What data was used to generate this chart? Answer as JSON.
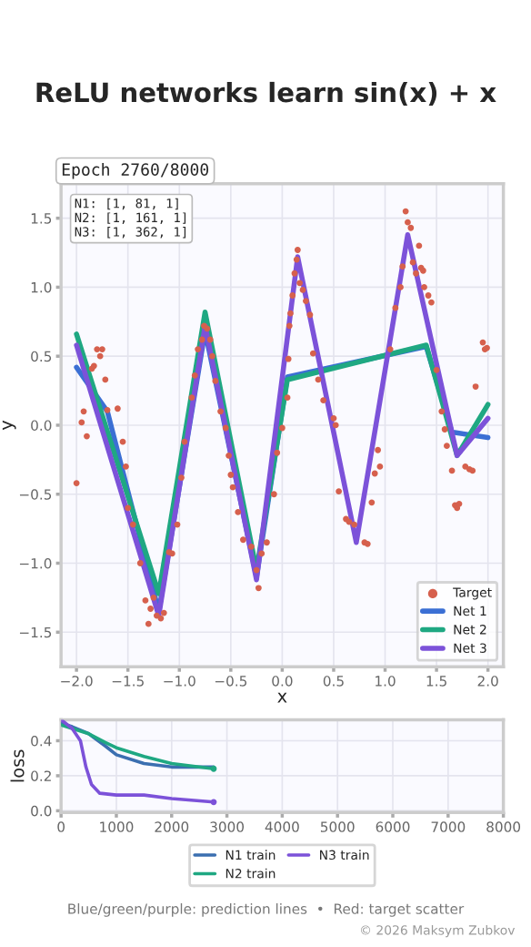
{
  "chart_data": [
    {
      "type": "line",
      "title": "ReLU networks learn sin(x) + x",
      "xlabel": "x",
      "ylabel": "y",
      "annotations": [
        "Epoch 2760/8000",
        "N1: [1, 81, 1]\nN2: [1, 161, 1]\nN3: [1, 362, 1]"
      ],
      "xlim": [
        -2.15,
        2.15
      ],
      "ylim": [
        -1.75,
        1.75
      ],
      "xticks": [
        {
          "value": -2.0,
          "label": "−2.0"
        },
        {
          "value": -1.5,
          "label": "−1.5"
        },
        {
          "value": -1.0,
          "label": "−1.0"
        },
        {
          "value": -0.5,
          "label": "−0.5"
        },
        {
          "value": 0.0,
          "label": "0.0"
        },
        {
          "value": 0.5,
          "label": "0.5"
        },
        {
          "value": 1.0,
          "label": "1.0"
        },
        {
          "value": 1.5,
          "label": "1.5"
        },
        {
          "value": 2.0,
          "label": "2.0"
        }
      ],
      "yticks": [
        {
          "value": -1.5,
          "label": "−1.5"
        },
        {
          "value": -1.0,
          "label": "−1.0"
        },
        {
          "value": -0.5,
          "label": "−0.5"
        },
        {
          "value": 0.0,
          "label": "0.0"
        },
        {
          "value": 0.5,
          "label": "0.5"
        },
        {
          "value": 1.0,
          "label": "1.0"
        },
        {
          "value": 1.5,
          "label": "1.5"
        }
      ],
      "grid": true,
      "legend": "bottom right",
      "series": [
        {
          "type": "scatter",
          "name": "Target",
          "color": "#d6604d",
          "x": [
            -2.0,
            -1.95,
            -1.93,
            -1.9,
            -1.85,
            -1.83,
            -1.8,
            -1.77,
            -1.75,
            -1.72,
            -1.7,
            -1.6,
            -1.55,
            -1.52,
            -1.5,
            -1.45,
            -1.38,
            -1.33,
            -1.3,
            -1.28,
            -1.25,
            -1.22,
            -1.18,
            -1.15,
            -1.1,
            -1.07,
            -1.02,
            -0.98,
            -0.95,
            -0.88,
            -0.85,
            -0.82,
            -0.78,
            -0.76,
            -0.73,
            -0.7,
            -0.68,
            -0.65,
            -0.6,
            -0.55,
            -0.52,
            -0.5,
            -0.48,
            -0.43,
            -0.38,
            -0.3,
            -0.25,
            -0.23,
            -0.2,
            -0.15,
            -0.08,
            -0.05,
            0.0,
            0.05,
            0.06,
            0.07,
            0.08,
            0.1,
            0.12,
            0.14,
            0.15,
            0.17,
            0.2,
            0.23,
            0.27,
            0.3,
            0.35,
            0.4,
            0.5,
            0.52,
            0.55,
            0.62,
            0.65,
            0.7,
            0.8,
            0.83,
            0.87,
            0.9,
            0.93,
            0.95,
            1.05,
            1.1,
            1.15,
            1.17,
            1.2,
            1.22,
            1.25,
            1.27,
            1.3,
            1.33,
            1.35,
            1.37,
            1.38,
            1.42,
            1.45,
            1.5,
            1.55,
            1.58,
            1.6,
            1.65,
            1.68,
            1.7,
            1.72,
            1.78,
            1.82,
            1.85,
            1.88,
            1.95,
            1.97,
            1.99
          ],
          "values": [
            -0.42,
            0.02,
            0.1,
            -0.08,
            0.41,
            0.43,
            0.55,
            0.5,
            0.55,
            0.33,
            0.11,
            0.12,
            -0.12,
            -0.3,
            -0.6,
            -0.72,
            -1.0,
            -1.27,
            -1.44,
            -1.33,
            -1.25,
            -1.38,
            -1.4,
            -1.36,
            -0.92,
            -0.93,
            -0.72,
            -0.38,
            -0.12,
            0.2,
            0.36,
            0.55,
            0.62,
            0.72,
            0.7,
            0.62,
            0.5,
            0.32,
            0.1,
            -0.02,
            -0.22,
            -0.36,
            -0.45,
            -0.63,
            -0.83,
            -0.88,
            -1.05,
            -1.18,
            -0.93,
            -0.85,
            -0.5,
            -0.2,
            -0.02,
            0.2,
            0.48,
            0.72,
            0.81,
            0.94,
            1.1,
            1.2,
            1.27,
            1.03,
            0.98,
            0.9,
            0.8,
            0.52,
            0.33,
            0.18,
            0.05,
            0.0,
            -0.48,
            -0.68,
            -0.7,
            -0.72,
            -0.85,
            -0.86,
            -0.56,
            -0.35,
            -0.18,
            -0.3,
            0.55,
            0.85,
            1.0,
            1.15,
            1.55,
            1.47,
            1.43,
            1.18,
            1.1,
            1.3,
            1.14,
            1.12,
            1.0,
            0.94,
            0.89,
            0.4,
            0.1,
            -0.03,
            -0.15,
            -0.33,
            -0.58,
            -0.6,
            -0.57,
            -0.3,
            -0.32,
            -0.33,
            0.28,
            0.6,
            0.55,
            0.56
          ]
        },
        {
          "name": "Net 1",
          "color": "#3b6fd4",
          "x": [
            -2.0,
            -1.7,
            -1.2,
            -0.75,
            -0.25,
            0.05,
            1.4,
            1.65,
            2.0
          ],
          "values": [
            0.42,
            0.1,
            -1.35,
            0.68,
            -1.1,
            0.35,
            0.57,
            -0.05,
            -0.09
          ]
        },
        {
          "name": "Net 2",
          "color": "#1fa882",
          "x": [
            -2.0,
            -1.2,
            -0.75,
            -0.25,
            0.05,
            1.4,
            1.7,
            2.0
          ],
          "values": [
            0.66,
            -1.22,
            0.82,
            -1.05,
            0.33,
            0.58,
            -0.22,
            0.15
          ]
        },
        {
          "name": "Net 3",
          "color": "#7c52d9",
          "x": [
            -2.0,
            -1.2,
            -0.75,
            -0.25,
            0.15,
            0.72,
            1.22,
            1.7,
            2.0
          ],
          "values": [
            0.58,
            -1.38,
            0.72,
            -1.12,
            1.22,
            -0.85,
            1.38,
            -0.22,
            0.05
          ]
        }
      ]
    },
    {
      "type": "line",
      "ylabel": "loss",
      "xlim": [
        0,
        8000
      ],
      "ylim": [
        -0.01,
        0.52
      ],
      "xticks": [
        0,
        1000,
        2000,
        3000,
        4000,
        5000,
        6000,
        7000,
        8000
      ],
      "yticks": [
        {
          "value": 0.0,
          "label": "0.0"
        },
        {
          "value": 0.2,
          "label": "0.2"
        },
        {
          "value": 0.4,
          "label": "0.4"
        }
      ],
      "grid": true,
      "legend": "bottom",
      "annotations": [
        "Blue/green/purple: prediction lines  •  Red: target scatter",
        "© 2026 Maksym Zubkov"
      ],
      "series": [
        {
          "name": "N1 train",
          "color": "#3b6fb0",
          "x": [
            0,
            200,
            500,
            800,
            1000,
            1500,
            2000,
            2760
          ],
          "values": [
            0.5,
            0.48,
            0.44,
            0.37,
            0.32,
            0.27,
            0.25,
            0.25
          ]
        },
        {
          "name": "N2 train",
          "color": "#1fa882",
          "x": [
            0,
            200,
            500,
            800,
            1000,
            1500,
            2000,
            2760
          ],
          "values": [
            0.49,
            0.47,
            0.44,
            0.39,
            0.36,
            0.31,
            0.27,
            0.24
          ]
        },
        {
          "name": "N3 train",
          "color": "#7c52d9",
          "x": [
            0,
            200,
            350,
            450,
            550,
            700,
            1000,
            1500,
            2000,
            2760
          ],
          "values": [
            0.52,
            0.47,
            0.4,
            0.25,
            0.15,
            0.1,
            0.09,
            0.09,
            0.07,
            0.05
          ]
        },
        {
          "type": "scatter",
          "x": [
            2760,
            2760
          ],
          "values": [
            0.24,
            0.05
          ],
          "colors": [
            "#1fa882",
            "#7c52d9"
          ]
        }
      ]
    }
  ]
}
